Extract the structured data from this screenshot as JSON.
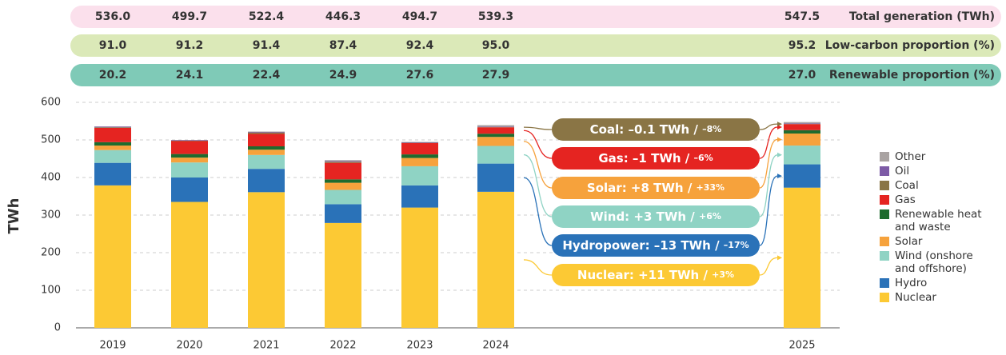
{
  "chart_data": {
    "type": "bar",
    "y_label": "TWh",
    "categories": [
      "2019",
      "2020",
      "2021",
      "2022",
      "2023",
      "2024",
      "2025"
    ],
    "summary_rows": [
      {
        "name": "Total generation (TWh)",
        "color": "#fbe0ec",
        "values": [
          "536.0",
          "499.7",
          "522.4",
          "446.3",
          "494.7",
          "539.3",
          "547.5"
        ]
      },
      {
        "name": "Low-carbon proportion (%)",
        "color": "#dbe9b8",
        "values": [
          "91.0",
          "91.2",
          "91.4",
          "87.4",
          "92.4",
          "95.0",
          "95.2"
        ]
      },
      {
        "name": "Renewable proportion (%)",
        "color": "#7fcab7",
        "values": [
          "20.2",
          "24.1",
          "22.4",
          "24.9",
          "27.6",
          "27.9",
          "27.0"
        ]
      }
    ],
    "series": [
      {
        "name": "Nuclear",
        "color": "#fcc934",
        "values": [
          379,
          335,
          361,
          279,
          320,
          362,
          373
        ],
        "annotation": {
          "text": "Nuclear: +11 TWh / ",
          "change": "+3%"
        }
      },
      {
        "name": "Hydro",
        "color": "#2a72b8",
        "values": [
          60,
          65,
          62,
          50,
          59,
          75,
          62
        ],
        "annotation": {
          "text": "Hydropower: –13 TWh / ",
          "change": "–17%"
        }
      },
      {
        "name": "Wind (onshore and offshore)",
        "color": "#8fd3c4",
        "values": [
          34,
          40,
          37,
          38,
          51,
          47,
          50
        ],
        "annotation": {
          "text": "Wind: +3 TWh / ",
          "change": "+6%"
        }
      },
      {
        "name": "Solar",
        "color": "#f6a23c",
        "values": [
          12,
          13,
          14,
          19,
          22,
          24,
          32
        ],
        "annotation": {
          "text": "Solar: +8 TWh / ",
          "change": "+33%"
        }
      },
      {
        "name": "Renewable heat and waste",
        "color": "#1e6b2e",
        "values": [
          9,
          9.5,
          9,
          9,
          9.5,
          8.5,
          9
        ]
      },
      {
        "name": "Gas",
        "color": "#e52421",
        "values": [
          38,
          34.3,
          33,
          44,
          30,
          17,
          16
        ],
        "annotation": {
          "text": "Gas: –1 TWh / ",
          "change": "–6%"
        }
      },
      {
        "name": "Coal",
        "color": "#8a7545",
        "values": [
          1.6,
          1.4,
          3.8,
          3,
          0.8,
          0.6,
          0.5
        ],
        "annotation": {
          "text": "Coal: –0.1 TWh / ",
          "change": "–8%"
        }
      },
      {
        "name": "Oil",
        "color": "#7d5ba6",
        "values": [
          2,
          1.5,
          1.6,
          2,
          1.4,
          1.2,
          1.2
        ]
      },
      {
        "name": "Other",
        "color": "#a9a3a2",
        "values": [
          0.4,
          0,
          1.0,
          2.3,
          1.0,
          4.0,
          3.8
        ]
      }
    ],
    "ylim": [
      0,
      600
    ],
    "yticks": [
      0,
      100,
      200,
      300,
      400,
      500,
      600
    ],
    "grid": true
  }
}
